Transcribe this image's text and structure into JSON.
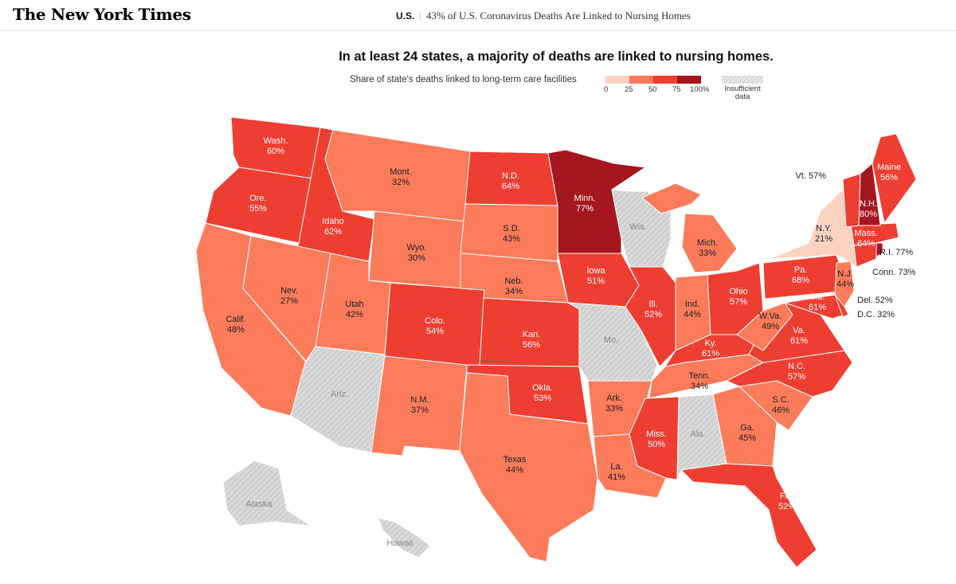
{
  "header": {
    "logo": "The New York Times",
    "section": "U.S.",
    "separator": "|",
    "article_title": "43% of U.S. Coronavirus Deaths Are Linked to Nursing Homes"
  },
  "headline": "In at least 24 states, a majority of deaths are linked to nursing homes.",
  "legend": {
    "label": "Share of state's deaths linked to long-term care facilities",
    "ticks": [
      "0",
      "25",
      "50",
      "75",
      "100%"
    ],
    "colors": [
      "#fcd3c1",
      "#f8785c",
      "#ee3e32",
      "#d82b2b",
      "#a3161d"
    ],
    "nodata_label_1": "Insufficient",
    "nodata_label_2": "data"
  },
  "colors": {
    "low": "#fcd3c1",
    "mid": "#fb7b5b",
    "high": "#ee3e32",
    "top": "#a5161f",
    "nodata": "#d9d9d9"
  },
  "states": [
    {
      "abbr": "WA",
      "name": "Wash.",
      "value": "60%"
    },
    {
      "abbr": "OR",
      "name": "Ore.",
      "value": "55%"
    },
    {
      "abbr": "CA",
      "name": "Calif.",
      "value": "48%"
    },
    {
      "abbr": "ID",
      "name": "Idaho",
      "value": "62%"
    },
    {
      "abbr": "NV",
      "name": "Nev.",
      "value": "27%"
    },
    {
      "abbr": "MT",
      "name": "Mont.",
      "value": "32%"
    },
    {
      "abbr": "WY",
      "name": "Wyo.",
      "value": "30%"
    },
    {
      "abbr": "UT",
      "name": "Utah",
      "value": "42%"
    },
    {
      "abbr": "AZ",
      "name": "Ariz.",
      "value": ""
    },
    {
      "abbr": "CO",
      "name": "Colo.",
      "value": "54%"
    },
    {
      "abbr": "NM",
      "name": "N.M.",
      "value": "37%"
    },
    {
      "abbr": "ND",
      "name": "N.D.",
      "value": "64%"
    },
    {
      "abbr": "SD",
      "name": "S.D.",
      "value": "43%"
    },
    {
      "abbr": "NE",
      "name": "Neb.",
      "value": "34%"
    },
    {
      "abbr": "KS",
      "name": "Kan.",
      "value": "56%"
    },
    {
      "abbr": "OK",
      "name": "Okla.",
      "value": "53%"
    },
    {
      "abbr": "TX",
      "name": "Texas",
      "value": "44%"
    },
    {
      "abbr": "MN",
      "name": "Minn.",
      "value": "77%"
    },
    {
      "abbr": "IA",
      "name": "Iowa",
      "value": "51%"
    },
    {
      "abbr": "MO",
      "name": "Mo.",
      "value": ""
    },
    {
      "abbr": "AR",
      "name": "Ark.",
      "value": "33%"
    },
    {
      "abbr": "LA",
      "name": "La.",
      "value": "41%"
    },
    {
      "abbr": "WI",
      "name": "Wis.",
      "value": ""
    },
    {
      "abbr": "IL",
      "name": "Ill.",
      "value": "52%"
    },
    {
      "abbr": "MI",
      "name": "Mich.",
      "value": "33%"
    },
    {
      "abbr": "IN",
      "name": "Ind.",
      "value": "44%"
    },
    {
      "abbr": "OH",
      "name": "Ohio",
      "value": "57%"
    },
    {
      "abbr": "KY",
      "name": "Ky.",
      "value": "61%"
    },
    {
      "abbr": "TN",
      "name": "Tenn.",
      "value": "34%"
    },
    {
      "abbr": "MS",
      "name": "Miss.",
      "value": "50%"
    },
    {
      "abbr": "AL",
      "name": "Ala.",
      "value": ""
    },
    {
      "abbr": "GA",
      "name": "Ga.",
      "value": "45%"
    },
    {
      "abbr": "FL",
      "name": "Fla.",
      "value": "52%"
    },
    {
      "abbr": "SC",
      "name": "S.C.",
      "value": "46%"
    },
    {
      "abbr": "NC",
      "name": "N.C.",
      "value": "57%"
    },
    {
      "abbr": "VA",
      "name": "Va.",
      "value": "61%"
    },
    {
      "abbr": "WV",
      "name": "W.Va.",
      "value": "49%"
    },
    {
      "abbr": "PA",
      "name": "Pa.",
      "value": "68%"
    },
    {
      "abbr": "NY",
      "name": "N.Y.",
      "value": "21%"
    },
    {
      "abbr": "NJ",
      "name": "N.J.",
      "value": "44%"
    },
    {
      "abbr": "MD",
      "name": "Md.",
      "value": "61%"
    },
    {
      "abbr": "DE",
      "name": "Del.",
      "value": "52%"
    },
    {
      "abbr": "DC",
      "name": "D.C.",
      "value": "32%"
    },
    {
      "abbr": "CT",
      "name": "Conn.",
      "value": "73%"
    },
    {
      "abbr": "RI",
      "name": "R.I.",
      "value": "77%"
    },
    {
      "abbr": "MA",
      "name": "Mass.",
      "value": "64%"
    },
    {
      "abbr": "VT",
      "name": "Vt.",
      "value": "57%"
    },
    {
      "abbr": "NH",
      "name": "N.H.",
      "value": "80%"
    },
    {
      "abbr": "ME",
      "name": "Maine",
      "value": "56%"
    },
    {
      "abbr": "AK",
      "name": "Alaska",
      "value": ""
    },
    {
      "abbr": "HI",
      "name": "Hawaii",
      "value": ""
    }
  ]
}
